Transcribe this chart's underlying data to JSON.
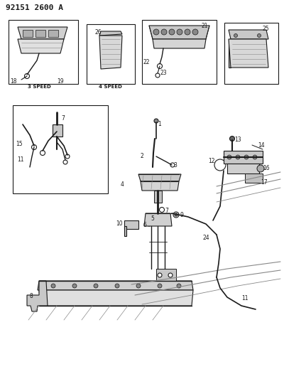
{
  "title": "92151 2600 A",
  "bg_color": "#ffffff",
  "line_color": "#1a1a1a",
  "gray1": "#555555",
  "gray2": "#888888",
  "gray3": "#bbbbbb",
  "fig_width": 4.0,
  "fig_height": 5.33,
  "dpi": 100
}
